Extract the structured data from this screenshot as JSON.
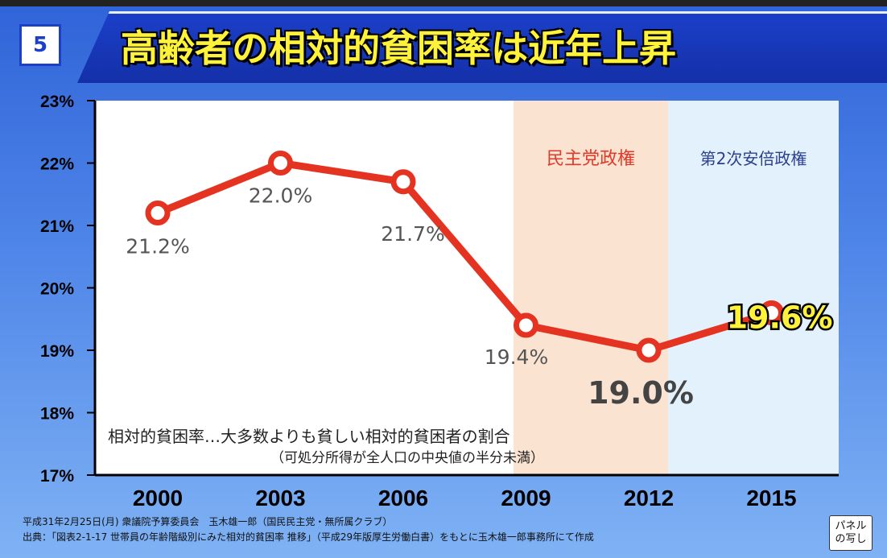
{
  "slide": {
    "number": "5",
    "title": "高齢者の相対的貧困率は近年上昇"
  },
  "footer": {
    "line1": "平成31年2月25日(月) 衆議院予算委員会　玉木雄一郎（国民民主党・無所属クラブ）",
    "line2": "出典：「図表2-1-17 世帯員の年齢階級別にみた相対的貧困率 推移」（平成29年版厚生労働白書）をもとに玉木雄一郎事務所にて作成"
  },
  "stamp": {
    "line1": "パネル",
    "line2": "の写し"
  },
  "chart_data": {
    "type": "line",
    "title": "高齢者の相対的貧困率は近年上昇",
    "xlabel": "",
    "ylabel": "",
    "categories": [
      "2000",
      "2003",
      "2006",
      "2009",
      "2012",
      "2015"
    ],
    "series": [
      {
        "values": [
          21.2,
          22.0,
          21.7,
          19.4,
          19.0,
          19.6
        ],
        "color": "#e53322"
      }
    ],
    "data_labels": [
      "21.2%",
      "22.0%",
      "21.7%",
      "19.4%",
      "19.0%",
      "19.6%"
    ],
    "ylim": [
      17,
      23
    ],
    "yticks": [
      "17%",
      "18%",
      "19%",
      "20%",
      "21%",
      "22%",
      "23%"
    ],
    "grid": false,
    "eras": [
      {
        "label": "民主党政権",
        "from": "2009",
        "to": "2012",
        "color": "#fbe3d2"
      },
      {
        "label": "第2次安倍政権",
        "from": "2012",
        "to": "2015",
        "color": "#e2f1fb"
      }
    ],
    "annotation": {
      "line1": "相対的貧困率…大多数よりも貧しい相対的貧困者の割合",
      "line2": "（可処分所得が全人口の中央値の半分未満）"
    }
  }
}
